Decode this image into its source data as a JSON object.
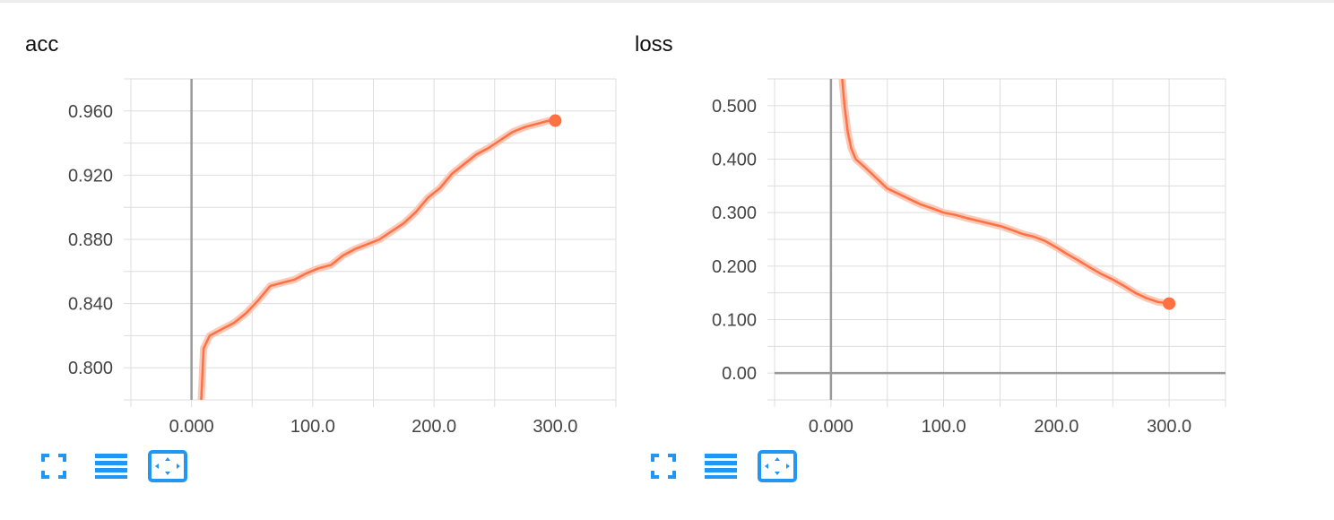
{
  "colors": {
    "series": "#ff7043",
    "series_light": "#fbc9b8",
    "grid": "#dddddd",
    "axis": "#999999",
    "icon": "#2196f3"
  },
  "toolbar_icons": [
    "fullscreen-icon",
    "data-list-icon",
    "fit-domain-icon"
  ],
  "chart_data": [
    {
      "type": "line",
      "title": "acc",
      "x_ticks": [
        "0.000",
        "100.0",
        "200.0",
        "300.0"
      ],
      "y_ticks": [
        "0.800",
        "0.840",
        "0.880",
        "0.920",
        "0.960"
      ],
      "xlim": [
        -50,
        350
      ],
      "ylim": [
        0.78,
        0.98
      ],
      "grid": true,
      "series": [
        {
          "x": [
            8,
            10,
            15,
            25,
            35,
            45,
            55,
            65,
            75,
            85,
            95,
            105,
            115,
            125,
            135,
            145,
            155,
            165,
            175,
            185,
            195,
            205,
            215,
            225,
            235,
            245,
            255,
            265,
            275,
            285,
            295,
            300
          ],
          "y": [
            0.779,
            0.812,
            0.82,
            0.824,
            0.828,
            0.834,
            0.842,
            0.851,
            0.853,
            0.855,
            0.859,
            0.862,
            0.864,
            0.87,
            0.874,
            0.877,
            0.88,
            0.885,
            0.89,
            0.897,
            0.906,
            0.912,
            0.921,
            0.927,
            0.933,
            0.937,
            0.942,
            0.947,
            0.95,
            0.952,
            0.954,
            0.954
          ]
        }
      ]
    },
    {
      "type": "line",
      "title": "loss",
      "x_ticks": [
        "0.000",
        "100.0",
        "200.0",
        "300.0"
      ],
      "y_ticks": [
        "0.00",
        "0.100",
        "0.200",
        "0.300",
        "0.400",
        "0.500"
      ],
      "xlim": [
        -50,
        350
      ],
      "ylim": [
        -0.05,
        0.55
      ],
      "grid": true,
      "series": [
        {
          "x": [
            10,
            12,
            15,
            18,
            22,
            30,
            40,
            50,
            60,
            70,
            80,
            90,
            100,
            110,
            120,
            130,
            140,
            150,
            160,
            170,
            180,
            190,
            200,
            210,
            220,
            230,
            240,
            250,
            260,
            270,
            280,
            290,
            300
          ],
          "y": [
            0.55,
            0.5,
            0.45,
            0.42,
            0.4,
            0.385,
            0.365,
            0.345,
            0.335,
            0.325,
            0.315,
            0.308,
            0.3,
            0.296,
            0.29,
            0.285,
            0.28,
            0.275,
            0.268,
            0.26,
            0.255,
            0.247,
            0.235,
            0.222,
            0.21,
            0.197,
            0.185,
            0.175,
            0.163,
            0.15,
            0.14,
            0.133,
            0.13
          ]
        }
      ]
    }
  ]
}
